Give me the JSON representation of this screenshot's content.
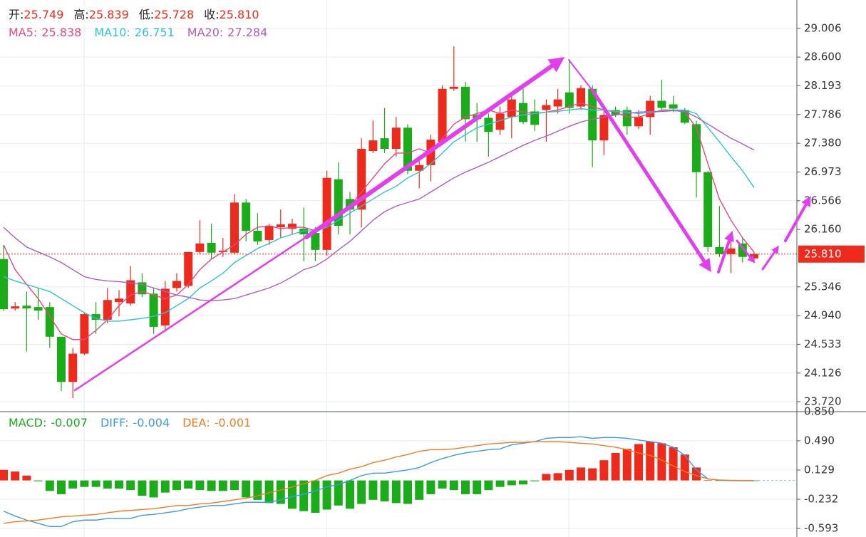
{
  "chart_data": [
    {
      "type": "candlestick",
      "info": [
        {
          "name": "开:",
          "value": 25.749
        },
        {
          "name": "高:",
          "value": 25.839
        },
        {
          "name": "低:",
          "value": 25.728
        },
        {
          "name": "收:",
          "value": 25.81,
          "label": "25.810"
        }
      ],
      "up_color": "#ee2a1d",
      "down_color": "#1aad19",
      "open": [
        25.74,
        25.04,
        25.08,
        25.06,
        25.06,
        24.64,
        24,
        24.4,
        24.96,
        24.88,
        25.13,
        25.11,
        25.41,
        25.25,
        24.8,
        25.33,
        25.36,
        25.84,
        25.97,
        25.84,
        25.83,
        26.54,
        26.14,
        26.01,
        26.19,
        26.17,
        26.17,
        26.11,
        25.87,
        26.87,
        26.59,
        26.44,
        27.27,
        27.45,
        27.3,
        27.6,
        26.99,
        27.07,
        27.4,
        28.15,
        28.18,
        27.78,
        27.74,
        27.57,
        27.75,
        27.95,
        27.83,
        27.85,
        27.9,
        28.1,
        27.9,
        28.15,
        27.42,
        27.85,
        27.85,
        27.62,
        27.75,
        27.98,
        27.93,
        27.85,
        27.65,
        26.97,
        25.91,
        25.81,
        25.96,
        25.749
      ],
      "high": [
        25.94,
        25.13,
        25.28,
        25.33,
        25.13,
        24.64,
        24.48,
        24.98,
        25.13,
        25.33,
        25.3,
        25.64,
        25.54,
        25.33,
        25.43,
        25.54,
        25.84,
        26.29,
        26.24,
        26.04,
        26.66,
        26.59,
        26.39,
        26.24,
        26.44,
        26.31,
        26.47,
        26.19,
        26.99,
        27.11,
        26.69,
        27.45,
        27.7,
        27.88,
        27.75,
        27.65,
        27.14,
        27.5,
        28.2,
        28.75,
        28.25,
        27.95,
        27.8,
        27.9,
        28.1,
        28.15,
        28.0,
        28.0,
        28.15,
        28.55,
        28.2,
        28.2,
        27.85,
        27.9,
        27.9,
        27.85,
        28.05,
        28.28,
        28.05,
        27.88,
        27.7,
        26.99,
        26.49,
        26.04,
        26.04,
        25.839
      ],
      "low": [
        25.01,
        25.01,
        24.43,
        24.88,
        24.48,
        23.87,
        23.77,
        24.38,
        24.68,
        24.83,
        24.93,
        25.08,
        25.2,
        24.68,
        24.71,
        25.28,
        25.33,
        25.81,
        25.74,
        25.77,
        25.81,
        25.99,
        25.94,
        25.94,
        26.04,
        26.09,
        25.71,
        25.71,
        25.79,
        26.09,
        26.09,
        26.19,
        27.24,
        27.24,
        27.19,
        26.94,
        26.74,
        26.84,
        27.35,
        28.12,
        27.4,
        27.4,
        27.19,
        27.5,
        27.45,
        27.65,
        27.55,
        27.4,
        27.8,
        27.8,
        27.85,
        27.04,
        27.21,
        27.75,
        27.5,
        27.58,
        27.5,
        27.85,
        27.82,
        27.65,
        26.61,
        25.84,
        25.77,
        25.54,
        25.69,
        25.728
      ],
      "close": [
        25.03,
        25.07,
        25.04,
        25.01,
        24.64,
        24,
        24.4,
        24.96,
        24.88,
        25.16,
        25.18,
        25.44,
        25.24,
        24.78,
        25.32,
        25.43,
        25.84,
        25.96,
        25.83,
        25.86,
        26.54,
        26.14,
        25.99,
        26.21,
        26.23,
        26.24,
        26.09,
        25.87,
        26.89,
        26.21,
        26.44,
        27.3,
        27.42,
        27.3,
        27.6,
        26.99,
        27.07,
        27.43,
        28.15,
        28.18,
        27.72,
        27.72,
        27.54,
        27.8,
        28.0,
        27.68,
        27.64,
        27.92,
        28.0,
        27.88,
        28.16,
        27.42,
        27.78,
        27.78,
        27.62,
        27.75,
        27.98,
        27.88,
        27.87,
        27.67,
        26.97,
        25.91,
        25.81,
        25.89,
        25.77,
        25.81
      ],
      "series": [
        {
          "name": "MA5:",
          "latest": 25.838,
          "color": "#e8487e",
          "values": [
            25.94,
            25.59,
            25.38,
            25.18,
            24.93,
            24.68,
            24.6,
            24.6,
            24.73,
            24.88,
            25.08,
            25.23,
            25.28,
            25.23,
            25.18,
            25.23,
            25.38,
            25.59,
            25.74,
            25.84,
            25.94,
            26.09,
            26.19,
            26.21,
            26.17,
            26.19,
            26.19,
            26.14,
            26.21,
            26.39,
            26.49,
            26.69,
            26.89,
            27.09,
            27.24,
            27.24,
            27.3,
            27.24,
            27.45,
            27.65,
            27.75,
            27.8,
            27.85,
            27.8,
            27.85,
            27.82,
            27.8,
            27.82,
            27.85,
            27.9,
            27.95,
            27.9,
            27.85,
            27.82,
            27.75,
            27.75,
            27.8,
            27.85,
            27.85,
            27.82,
            27.6,
            27.09,
            26.59,
            26.29,
            26.04,
            25.838
          ]
        },
        {
          "name": "MA10:",
          "latest": 26.751,
          "color": "#2fc3cf",
          "values": [
            25.49,
            25.43,
            25.38,
            25.33,
            25.28,
            25.18,
            25.08,
            24.98,
            24.9,
            24.86,
            24.86,
            24.88,
            24.9,
            24.93,
            24.98,
            25.08,
            25.18,
            25.33,
            25.43,
            25.54,
            25.69,
            25.79,
            25.89,
            25.96,
            26.04,
            26.09,
            26.14,
            26.14,
            26.19,
            26.29,
            26.39,
            26.49,
            26.59,
            26.69,
            26.77,
            26.89,
            26.97,
            27.09,
            27.24,
            27.4,
            27.5,
            27.6,
            27.65,
            27.7,
            27.75,
            27.78,
            27.8,
            27.82,
            27.83,
            27.85,
            27.87,
            27.85,
            27.85,
            27.83,
            27.82,
            27.8,
            27.82,
            27.83,
            27.85,
            27.85,
            27.8,
            27.6,
            27.4,
            27.19,
            26.99,
            26.751
          ]
        },
        {
          "name": "MA20:",
          "latest": 27.284,
          "color": "#b05cc4",
          "values": [
            26.19,
            26.04,
            25.91,
            25.84,
            25.77,
            25.69,
            25.59,
            25.49,
            25.45,
            25.43,
            25.42,
            25.4,
            25.38,
            25.33,
            25.28,
            25.23,
            25.2,
            25.16,
            25.15,
            25.16,
            25.18,
            25.23,
            25.28,
            25.33,
            25.4,
            25.49,
            25.59,
            25.64,
            25.74,
            25.87,
            25.99,
            26.14,
            26.29,
            26.41,
            26.49,
            26.54,
            26.59,
            26.69,
            26.79,
            26.89,
            26.97,
            27.04,
            27.11,
            27.19,
            27.27,
            27.35,
            27.42,
            27.48,
            27.55,
            27.62,
            27.68,
            27.72,
            27.75,
            27.78,
            27.8,
            27.82,
            27.83,
            27.83,
            27.84,
            27.83,
            27.75,
            27.65,
            27.55,
            27.45,
            27.37,
            27.284
          ]
        }
      ],
      "current_price": {
        "value": 25.81,
        "label": "25.810"
      },
      "ylim": [
        23.579,
        29.408
      ],
      "yticks": [
        29.006,
        {
          "value": 28.6,
          "label": "28.600"
        },
        28.193,
        27.786,
        {
          "value": 27.38,
          "label": "27.380"
        },
        26.973,
        26.566,
        {
          "value": 26.16,
          "label": "26.160"
        },
        25.346,
        {
          "value": 24.94,
          "label": "24.940"
        },
        24.533,
        24.126,
        {
          "value": 23.72,
          "label": "23.720"
        }
      ],
      "grid": true
    },
    {
      "type": "macd",
      "histogram": {
        "name": "MACD:",
        "latest": -0.007,
        "up_color": "#ee2a1d",
        "down_color": "#1aad19",
        "values": [
          0.13,
          0.11,
          0.06,
          -0.01,
          -0.13,
          -0.17,
          -0.1,
          -0.08,
          -0.08,
          -0.1,
          -0.1,
          -0.12,
          -0.19,
          -0.21,
          -0.15,
          -0.12,
          -0.1,
          -0.12,
          -0.13,
          -0.13,
          -0.12,
          -0.21,
          -0.24,
          -0.28,
          -0.29,
          -0.35,
          -0.38,
          -0.4,
          -0.36,
          -0.31,
          -0.35,
          -0.29,
          -0.24,
          -0.26,
          -0.28,
          -0.29,
          -0.24,
          -0.17,
          -0.1,
          -0.12,
          -0.17,
          -0.17,
          -0.12,
          -0.08,
          -0.06,
          -0.05,
          -0.01,
          0.08,
          0.09,
          0.13,
          0.16,
          0.15,
          0.25,
          0.34,
          0.39,
          0.45,
          0.48,
          0.46,
          0.41,
          0.32,
          0.16,
          0.003,
          -0.003,
          -0.005,
          -0.006,
          -0.007
        ]
      },
      "series": [
        {
          "name": "DIFF:",
          "latest": -0.004,
          "color": "#3b9be8",
          "values": [
            -0.38,
            -0.44,
            -0.49,
            -0.53,
            -0.57,
            -0.57,
            -0.51,
            -0.49,
            -0.49,
            -0.47,
            -0.47,
            -0.47,
            -0.43,
            -0.42,
            -0.4,
            -0.38,
            -0.35,
            -0.33,
            -0.31,
            -0.31,
            -0.29,
            -0.27,
            -0.27,
            -0.27,
            -0.24,
            -0.2,
            -0.17,
            -0.13,
            -0.08,
            -0.05,
            0,
            0.06,
            0.09,
            0.09,
            0.11,
            0.13,
            0.16,
            0.22,
            0.27,
            0.31,
            0.34,
            0.36,
            0.38,
            0.39,
            0.44,
            0.46,
            0.48,
            0.52,
            0.53,
            0.53,
            0.54,
            0.52,
            0.53,
            0.53,
            0.52,
            0.5,
            0.48,
            0.46,
            0.41,
            0.31,
            0.13,
            0.02,
            0.001,
            -0.002,
            -0.003,
            -0.004
          ]
        },
        {
          "name": "DEA:",
          "latest": -0.001,
          "color": "#f47b20",
          "values": [
            -0.53,
            -0.51,
            -0.5,
            -0.49,
            -0.47,
            -0.45,
            -0.44,
            -0.43,
            -0.42,
            -0.4,
            -0.38,
            -0.37,
            -0.36,
            -0.35,
            -0.33,
            -0.31,
            -0.31,
            -0.29,
            -0.28,
            -0.26,
            -0.24,
            -0.22,
            -0.19,
            -0.15,
            -0.12,
            -0.08,
            -0.04,
            0,
            0.06,
            0.09,
            0.14,
            0.17,
            0.22,
            0.25,
            0.29,
            0.32,
            0.36,
            0.38,
            0.38,
            0.39,
            0.41,
            0.43,
            0.45,
            0.46,
            0.47,
            0.47,
            0.48,
            0.48,
            0.48,
            0.47,
            0.46,
            0.45,
            0.43,
            0.41,
            0.38,
            0.34,
            0.31,
            0.25,
            0.18,
            0.11,
            0.06,
            0.02,
            0.005,
            0.001,
            0,
            -0.001
          ]
        }
      ],
      "ylim": [
        -0.699,
        0.85
      ],
      "yticks": [
        {
          "value": 0.85,
          "label": "0.850"
        },
        {
          "value": 0.49,
          "label": "0.490"
        },
        0.129,
        -0.232,
        -0.593
      ],
      "grid": true
    }
  ]
}
